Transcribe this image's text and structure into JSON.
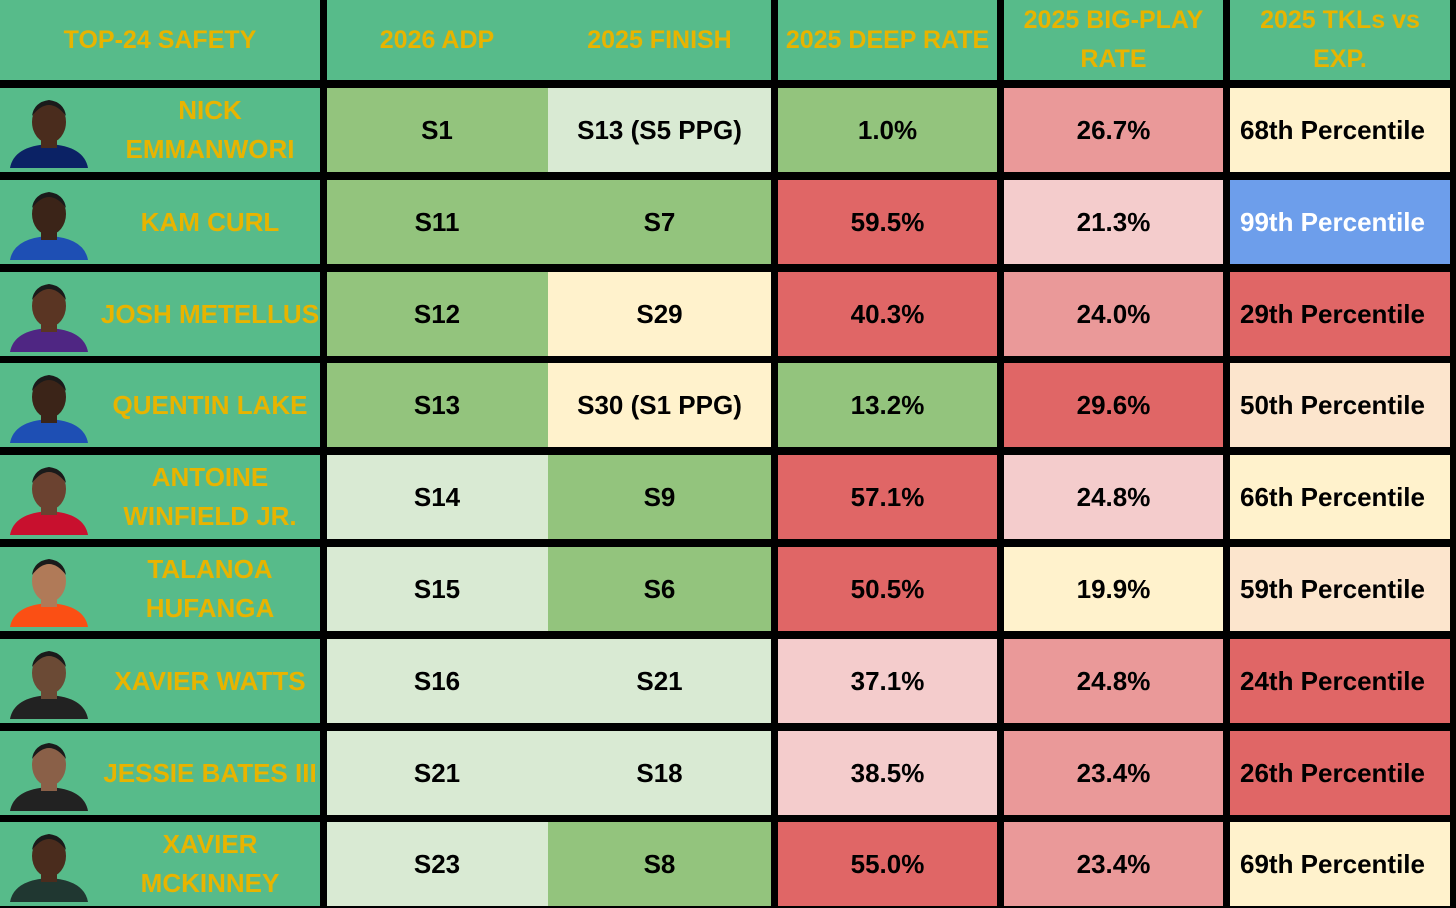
{
  "header": [
    "TOP-24 SAFETY",
    "2026 ADP",
    "2025 FINISH",
    "2025 DEEP RATE",
    "2025 BIG-PLAY RATE",
    "2025 TKLs vs EXP."
  ],
  "rows": [
    [
      "NICK EMMANWORI",
      "S1",
      "S13 (S5 PPG)",
      "1.0%",
      "26.7%",
      "68th Percentile"
    ],
    [
      "KAM CURL",
      "S11",
      "S7",
      "59.5%",
      "21.3%",
      "99th Percentile"
    ],
    [
      "JOSH METELLUS",
      "S12",
      "S29",
      "40.3%",
      "24.0%",
      "29th Percentile"
    ],
    [
      "QUENTIN LAKE",
      "S13",
      "S30 (S1 PPG)",
      "13.2%",
      "29.6%",
      "50th Percentile"
    ],
    [
      "ANTOINE WINFIELD JR.",
      "S14",
      "S9",
      "57.1%",
      "24.8%",
      "66th Percentile"
    ],
    [
      "TALANOA HUFANGA",
      "S15",
      "S6",
      "50.5%",
      "19.9%",
      "59th Percentile"
    ],
    [
      "XAVIER WATTS",
      "S16",
      "S21",
      "37.1%",
      "24.8%",
      "24th Percentile"
    ],
    [
      "JESSIE BATES III",
      "S21",
      "S18",
      "38.5%",
      "23.4%",
      "26th Percentile"
    ],
    [
      "XAVIER MCKINNEY",
      "S23",
      "S8",
      "55.0%",
      "23.4%",
      "69th Percentile"
    ]
  ]
}
